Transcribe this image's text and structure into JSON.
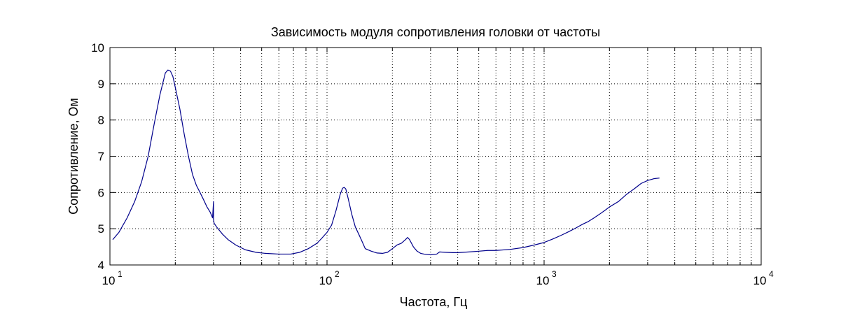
{
  "chart_data": {
    "type": "line",
    "title": "Зависимость модуля сопротивления головки от частоты",
    "xlabel": "Частота, Гц",
    "ylabel": "Сопротивление, Ом",
    "xscale": "log",
    "xlim": [
      10,
      10000
    ],
    "ylim": [
      4,
      10
    ],
    "grid": true,
    "line_color": "#00008b",
    "x_ticks": [
      {
        "value": 10,
        "base": "10",
        "exp": "1"
      },
      {
        "value": 100,
        "base": "10",
        "exp": "2"
      },
      {
        "value": 1000,
        "base": "10",
        "exp": "3"
      },
      {
        "value": 10000,
        "base": "10",
        "exp": "4"
      }
    ],
    "y_ticks": [
      "4",
      "5",
      "6",
      "7",
      "8",
      "9",
      "10"
    ],
    "series": [
      {
        "x": [
          10.3,
          11,
          12,
          13,
          14,
          15,
          16,
          17,
          18,
          18.5,
          19,
          19.5,
          20,
          21,
          22,
          23,
          24,
          25,
          26,
          27,
          28,
          29,
          29.7,
          30,
          30,
          30.2,
          31,
          33,
          35,
          38,
          42,
          47,
          52,
          60,
          68,
          75,
          82,
          90,
          95,
          100,
          105,
          110,
          115,
          118,
          120,
          122,
          125,
          130,
          135,
          140,
          145,
          150,
          160,
          170,
          180,
          190,
          200,
          210,
          220,
          230,
          235,
          240,
          250,
          260,
          270,
          280,
          300,
          320,
          330,
          350,
          380,
          400,
          450,
          500,
          550,
          600,
          700,
          800,
          900,
          1000,
          1100,
          1200,
          1300,
          1400,
          1500,
          1600,
          1700,
          1800,
          1900,
          2000,
          2200,
          2400,
          2600,
          2800,
          3000,
          3200,
          3400
        ],
        "y": [
          4.7,
          4.9,
          5.3,
          5.75,
          6.3,
          7.0,
          7.9,
          8.7,
          9.3,
          9.38,
          9.35,
          9.2,
          8.9,
          8.3,
          7.6,
          7.0,
          6.5,
          6.2,
          6.0,
          5.8,
          5.6,
          5.45,
          5.3,
          5.75,
          5.25,
          5.15,
          5.05,
          4.85,
          4.7,
          4.55,
          4.42,
          4.35,
          4.32,
          4.3,
          4.3,
          4.35,
          4.45,
          4.6,
          4.75,
          4.9,
          5.1,
          5.5,
          5.95,
          6.12,
          6.14,
          6.1,
          5.85,
          5.4,
          5.05,
          4.85,
          4.65,
          4.45,
          4.38,
          4.33,
          4.32,
          4.35,
          4.45,
          4.55,
          4.6,
          4.7,
          4.76,
          4.7,
          4.5,
          4.38,
          4.32,
          4.3,
          4.28,
          4.3,
          4.36,
          4.35,
          4.34,
          4.34,
          4.36,
          4.38,
          4.4,
          4.4,
          4.43,
          4.48,
          4.55,
          4.62,
          4.72,
          4.82,
          4.92,
          5.02,
          5.12,
          5.2,
          5.3,
          5.4,
          5.5,
          5.6,
          5.75,
          5.95,
          6.1,
          6.25,
          6.33,
          6.38,
          6.4
        ]
      }
    ]
  }
}
